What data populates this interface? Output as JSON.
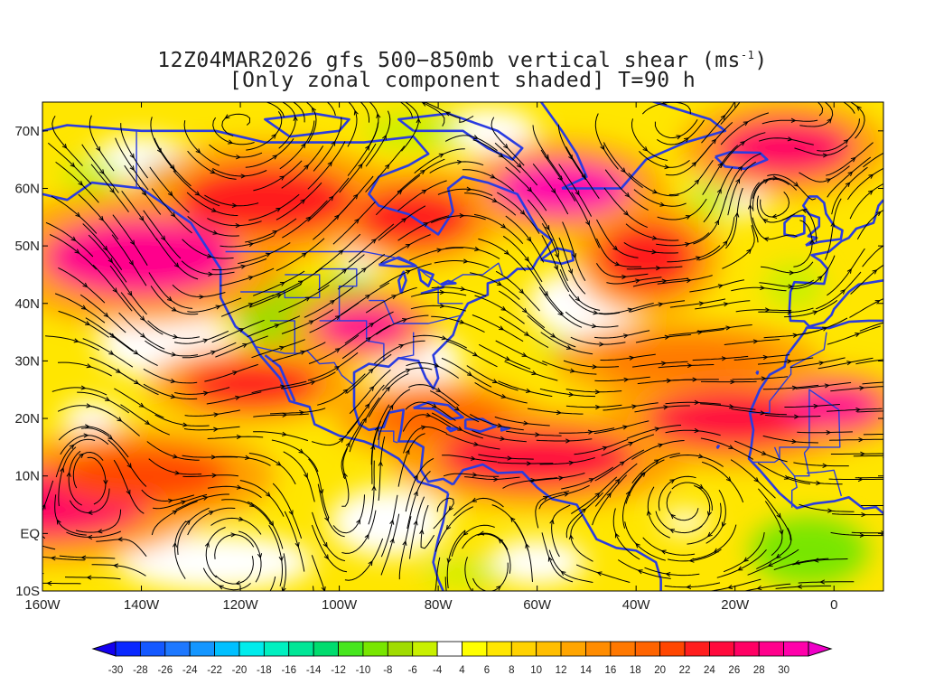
{
  "title": {
    "line1_pre": "12Z04MAR2026 gfs 500−850mb vertical shear (ms",
    "line1_sup": "-1",
    "line1_post": ")",
    "line2": "[Only zonal component shaded] T=90 h"
  },
  "map": {
    "lon_range": [
      -160,
      10
    ],
    "lat_range": [
      -10,
      75
    ],
    "y_ticks": [
      {
        "lat": 70,
        "label": "70N"
      },
      {
        "lat": 60,
        "label": "60N"
      },
      {
        "lat": 50,
        "label": "50N"
      },
      {
        "lat": 40,
        "label": "40N"
      },
      {
        "lat": 30,
        "label": "30N"
      },
      {
        "lat": 20,
        "label": "20N"
      },
      {
        "lat": 10,
        "label": "10N"
      },
      {
        "lat": 0,
        "label": "EQ"
      },
      {
        "lat": -10,
        "label": "10S"
      }
    ],
    "x_ticks": [
      {
        "lon": -160,
        "label": "160W"
      },
      {
        "lon": -140,
        "label": "140W"
      },
      {
        "lon": -120,
        "label": "120W"
      },
      {
        "lon": -100,
        "label": "100W"
      },
      {
        "lon": -80,
        "label": "80W"
      },
      {
        "lon": -60,
        "label": "60W"
      },
      {
        "lon": -40,
        "label": "40W"
      },
      {
        "lon": -20,
        "label": "20W"
      },
      {
        "lon": 0,
        "label": "0"
      }
    ],
    "colors": {
      "coastline": "#2a3ce0",
      "streamline": "#000000"
    },
    "jets": [
      {
        "lon": -160,
        "lat": 5,
        "rx": 22,
        "ry": 6,
        "v": 26
      },
      {
        "lon": -140,
        "lat": 10,
        "rx": 18,
        "ry": 5,
        "v": 20
      },
      {
        "lon": -118,
        "lat": 26,
        "rx": 14,
        "ry": 4,
        "v": 22
      },
      {
        "lon": -95,
        "lat": 36,
        "rx": 10,
        "ry": 4,
        "v": 28
      },
      {
        "lon": -140,
        "lat": 48,
        "rx": 20,
        "ry": 7,
        "v": 28
      },
      {
        "lon": -115,
        "lat": 58,
        "rx": 18,
        "ry": 6,
        "v": 22
      },
      {
        "lon": -85,
        "lat": 55,
        "rx": 12,
        "ry": 5,
        "v": 22
      },
      {
        "lon": -55,
        "lat": 60,
        "rx": 14,
        "ry": 5,
        "v": 30
      },
      {
        "lon": -38,
        "lat": 48,
        "rx": 10,
        "ry": 6,
        "v": 22
      },
      {
        "lon": -10,
        "lat": 67,
        "rx": 14,
        "ry": 5,
        "v": 26
      },
      {
        "lon": -60,
        "lat": 13,
        "rx": 20,
        "ry": 5,
        "v": 24
      },
      {
        "lon": -20,
        "lat": 20,
        "rx": 18,
        "ry": 5,
        "v": 24
      },
      {
        "lon": 0,
        "lat": 22,
        "rx": 10,
        "ry": 4,
        "v": 28
      },
      {
        "lon": -30,
        "lat": 30,
        "rx": 18,
        "ry": 4,
        "v": 16
      },
      {
        "lon": -80,
        "lat": 20,
        "rx": 14,
        "ry": 4,
        "v": 18
      }
    ],
    "green_areas": [
      {
        "lon": -112,
        "lat": 38,
        "rx": 9,
        "ry": 6,
        "v": -8
      },
      {
        "lon": -98,
        "lat": 42,
        "rx": 6,
        "ry": 3,
        "v": -10
      },
      {
        "lon": -5,
        "lat": -3,
        "rx": 12,
        "ry": 6,
        "v": -10
      },
      {
        "lon": -150,
        "lat": 62,
        "rx": 6,
        "ry": 3,
        "v": -6
      },
      {
        "lon": -135,
        "lat": 62,
        "rx": 5,
        "ry": 3,
        "v": -8
      },
      {
        "lon": -85,
        "lat": 70,
        "rx": 10,
        "ry": 3,
        "v": -6
      },
      {
        "lon": -25,
        "lat": 58,
        "rx": 5,
        "ry": 3,
        "v": -6
      },
      {
        "lon": -8,
        "lat": 43,
        "rx": 6,
        "ry": 4,
        "v": -6
      },
      {
        "lon": -55,
        "lat": 32,
        "rx": 4,
        "ry": 2,
        "v": -6
      },
      {
        "lon": -75,
        "lat": -7,
        "rx": 8,
        "ry": 2,
        "v": -6
      },
      {
        "lon": -30,
        "lat": 2,
        "rx": 5,
        "ry": 2,
        "v": -4
      }
    ]
  },
  "colorbar": {
    "colors": [
      "#1400f0",
      "#0a28ff",
      "#1458ff",
      "#1e78ff",
      "#1496ff",
      "#00c0ff",
      "#00ecec",
      "#00f0c0",
      "#00e696",
      "#00dc6e",
      "#46e61e",
      "#78e600",
      "#a0dc00",
      "#c8f000",
      "#ffffff",
      "#ffff00",
      "#ffe600",
      "#ffd200",
      "#ffbe00",
      "#ffa500",
      "#ff8c00",
      "#ff7800",
      "#ff6400",
      "#ff4600",
      "#ff1e1e",
      "#ff0a3c",
      "#ff0064",
      "#ff008c",
      "#ff00aa",
      "#f000c8"
    ],
    "labels": [
      "-30",
      "-28",
      "-26",
      "-24",
      "-22",
      "-20",
      "-18",
      "-16",
      "-14",
      "-12",
      "-10",
      "-8",
      "-6",
      "-4",
      "4",
      "6",
      "8",
      "10",
      "12",
      "14",
      "16",
      "18",
      "20",
      "22",
      "24",
      "26",
      "28",
      "30"
    ]
  }
}
